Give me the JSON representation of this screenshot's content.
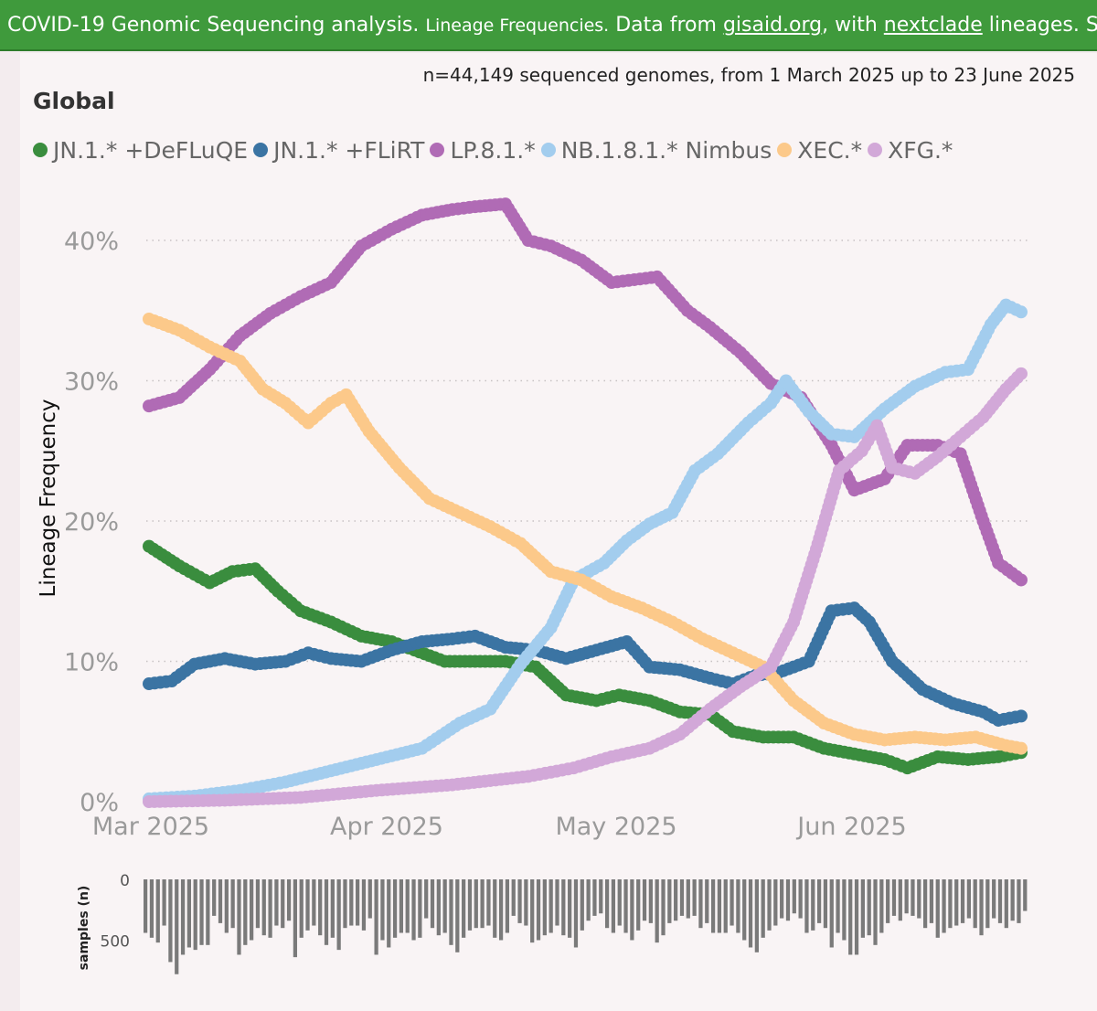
{
  "banner": {
    "part1": "COVID-19 Genomic Sequencing analysis. ",
    "part2": "Lineage Frequencies.",
    "part3": " Data from ",
    "link1": "gisaid.org",
    "part4": ", with ",
    "link2": "nextclade",
    "part5": " lineages. Source"
  },
  "subtitle": "n=44,149 sequenced genomes, from 1 March 2025 up to 23 June 2025",
  "region": "Global",
  "colors": {
    "JN.1.* +DeFLuQE": "#3a8d3e",
    "JN.1.* +FLiRT": "#3b74a3",
    "LP.8.1.*": "#b06bb5",
    "NB.1.8.1.* Nimbus": "#a3cdee",
    "XEC.*": "#fcc98a",
    "XFG.*": "#d2a8d8"
  },
  "chart_data": [
    {
      "type": "scatter",
      "title": "",
      "ylabel": "Lineage Frequency",
      "xlabel": "",
      "y_unit": "%",
      "ylim": [
        0,
        45
      ],
      "yticks": [
        "0%",
        "10%",
        "20%",
        "30%",
        "40%"
      ],
      "xticks": [
        "Mar 2025",
        "Apr 2025",
        "May 2025",
        "Jun 2025"
      ],
      "x_range": [
        "2025-02-28",
        "2025-06-23"
      ],
      "grid": "horizontal dotted",
      "legend": "top-left",
      "series": [
        {
          "name": "JN.1.* +DeFLuQE",
          "points": [
            [
              "2025-02-28",
              18.2
            ],
            [
              "2025-03-04",
              16.8
            ],
            [
              "2025-03-08",
              15.6
            ],
            [
              "2025-03-11",
              16.4
            ],
            [
              "2025-03-14",
              16.6
            ],
            [
              "2025-03-17",
              15.0
            ],
            [
              "2025-03-20",
              13.6
            ],
            [
              "2025-03-24",
              12.8
            ],
            [
              "2025-03-28",
              11.8
            ],
            [
              "2025-04-01",
              11.4
            ],
            [
              "2025-04-04",
              10.8
            ],
            [
              "2025-04-08",
              10.0
            ],
            [
              "2025-04-12",
              10.0
            ],
            [
              "2025-04-16",
              10.0
            ],
            [
              "2025-04-20",
              9.6
            ],
            [
              "2025-04-24",
              7.6
            ],
            [
              "2025-04-28",
              7.2
            ],
            [
              "2025-05-01",
              7.6
            ],
            [
              "2025-05-05",
              7.2
            ],
            [
              "2025-05-09",
              6.4
            ],
            [
              "2025-05-13",
              6.2
            ],
            [
              "2025-05-16",
              5.0
            ],
            [
              "2025-05-20",
              4.6
            ],
            [
              "2025-05-24",
              4.6
            ],
            [
              "2025-05-28",
              3.8
            ],
            [
              "2025-06-01",
              3.4
            ],
            [
              "2025-06-05",
              3.0
            ],
            [
              "2025-06-08",
              2.4
            ],
            [
              "2025-06-12",
              3.2
            ],
            [
              "2025-06-16",
              3.0
            ],
            [
              "2025-06-20",
              3.2
            ],
            [
              "2025-06-23",
              3.5
            ]
          ]
        },
        {
          "name": "JN.1.* +FLiRT",
          "points": [
            [
              "2025-02-28",
              8.4
            ],
            [
              "2025-03-03",
              8.6
            ],
            [
              "2025-03-06",
              9.8
            ],
            [
              "2025-03-10",
              10.2
            ],
            [
              "2025-03-14",
              9.8
            ],
            [
              "2025-03-18",
              10.0
            ],
            [
              "2025-03-21",
              10.6
            ],
            [
              "2025-03-24",
              10.2
            ],
            [
              "2025-03-28",
              10.0
            ],
            [
              "2025-04-01",
              10.8
            ],
            [
              "2025-04-05",
              11.4
            ],
            [
              "2025-04-09",
              11.6
            ],
            [
              "2025-04-12",
              11.8
            ],
            [
              "2025-04-16",
              11.0
            ],
            [
              "2025-04-20",
              10.8
            ],
            [
              "2025-04-24",
              10.2
            ],
            [
              "2025-04-28",
              10.8
            ],
            [
              "2025-05-02",
              11.4
            ],
            [
              "2025-05-05",
              9.6
            ],
            [
              "2025-05-09",
              9.4
            ],
            [
              "2025-05-13",
              8.8
            ],
            [
              "2025-05-16",
              8.4
            ],
            [
              "2025-05-19",
              9.0
            ],
            [
              "2025-05-22",
              9.2
            ],
            [
              "2025-05-26",
              10.0
            ],
            [
              "2025-05-29",
              13.6
            ],
            [
              "2025-06-01",
              13.8
            ],
            [
              "2025-06-03",
              12.8
            ],
            [
              "2025-06-06",
              10.0
            ],
            [
              "2025-06-10",
              8.0
            ],
            [
              "2025-06-14",
              7.0
            ],
            [
              "2025-06-18",
              6.4
            ],
            [
              "2025-06-20",
              5.8
            ],
            [
              "2025-06-23",
              6.1
            ]
          ]
        },
        {
          "name": "LP.8.1.*",
          "points": [
            [
              "2025-02-28",
              28.2
            ],
            [
              "2025-03-04",
              28.8
            ],
            [
              "2025-03-08",
              30.8
            ],
            [
              "2025-03-12",
              33.2
            ],
            [
              "2025-03-16",
              34.8
            ],
            [
              "2025-03-20",
              36.0
            ],
            [
              "2025-03-24",
              37.0
            ],
            [
              "2025-03-28",
              39.6
            ],
            [
              "2025-04-01",
              40.8
            ],
            [
              "2025-04-05",
              41.8
            ],
            [
              "2025-04-09",
              42.2
            ],
            [
              "2025-04-12",
              42.4
            ],
            [
              "2025-04-16",
              42.6
            ],
            [
              "2025-04-19",
              40.0
            ],
            [
              "2025-04-22",
              39.6
            ],
            [
              "2025-04-26",
              38.6
            ],
            [
              "2025-04-30",
              37.0
            ],
            [
              "2025-05-03",
              37.2
            ],
            [
              "2025-05-06",
              37.4
            ],
            [
              "2025-05-10",
              35.0
            ],
            [
              "2025-05-13",
              33.8
            ],
            [
              "2025-05-17",
              32.0
            ],
            [
              "2025-05-21",
              29.8
            ],
            [
              "2025-05-25",
              28.8
            ],
            [
              "2025-05-29",
              25.4
            ],
            [
              "2025-06-01",
              22.2
            ],
            [
              "2025-06-05",
              23.0
            ],
            [
              "2025-06-08",
              25.4
            ],
            [
              "2025-06-12",
              25.4
            ],
            [
              "2025-06-15",
              24.8
            ],
            [
              "2025-06-18",
              20.0
            ],
            [
              "2025-06-20",
              17.0
            ],
            [
              "2025-06-23",
              15.8
            ]
          ]
        },
        {
          "name": "NB.1.8.1.* Nimbus",
          "points": [
            [
              "2025-02-28",
              0.2
            ],
            [
              "2025-03-06",
              0.4
            ],
            [
              "2025-03-12",
              0.8
            ],
            [
              "2025-03-18",
              1.4
            ],
            [
              "2025-03-24",
              2.2
            ],
            [
              "2025-03-30",
              3.0
            ],
            [
              "2025-04-05",
              3.8
            ],
            [
              "2025-04-10",
              5.6
            ],
            [
              "2025-04-14",
              6.6
            ],
            [
              "2025-04-18",
              9.8
            ],
            [
              "2025-04-22",
              12.4
            ],
            [
              "2025-04-25",
              15.8
            ],
            [
              "2025-04-29",
              17.0
            ],
            [
              "2025-05-02",
              18.6
            ],
            [
              "2025-05-05",
              19.8
            ],
            [
              "2025-05-08",
              20.6
            ],
            [
              "2025-05-11",
              23.6
            ],
            [
              "2025-05-14",
              24.8
            ],
            [
              "2025-05-18",
              27.0
            ],
            [
              "2025-05-21",
              28.4
            ],
            [
              "2025-05-23",
              30.0
            ],
            [
              "2025-05-26",
              27.8
            ],
            [
              "2025-05-29",
              26.2
            ],
            [
              "2025-06-01",
              26.0
            ],
            [
              "2025-06-05",
              28.0
            ],
            [
              "2025-06-09",
              29.6
            ],
            [
              "2025-06-13",
              30.6
            ],
            [
              "2025-06-16",
              30.8
            ],
            [
              "2025-06-19",
              34.0
            ],
            [
              "2025-06-21",
              35.4
            ],
            [
              "2025-06-23",
              34.9
            ]
          ]
        },
        {
          "name": "XEC.*",
          "points": [
            [
              "2025-02-28",
              34.4
            ],
            [
              "2025-03-04",
              33.6
            ],
            [
              "2025-03-08",
              32.4
            ],
            [
              "2025-03-12",
              31.4
            ],
            [
              "2025-03-15",
              29.4
            ],
            [
              "2025-03-18",
              28.4
            ],
            [
              "2025-03-21",
              27.0
            ],
            [
              "2025-03-24",
              28.4
            ],
            [
              "2025-03-26",
              29.0
            ],
            [
              "2025-03-29",
              26.4
            ],
            [
              "2025-04-02",
              23.8
            ],
            [
              "2025-04-06",
              21.6
            ],
            [
              "2025-04-10",
              20.6
            ],
            [
              "2025-04-14",
              19.6
            ],
            [
              "2025-04-18",
              18.4
            ],
            [
              "2025-04-22",
              16.4
            ],
            [
              "2025-04-26",
              15.8
            ],
            [
              "2025-04-30",
              14.6
            ],
            [
              "2025-05-04",
              13.8
            ],
            [
              "2025-05-08",
              12.8
            ],
            [
              "2025-05-12",
              11.6
            ],
            [
              "2025-05-16",
              10.6
            ],
            [
              "2025-05-20",
              9.6
            ],
            [
              "2025-05-24",
              7.2
            ],
            [
              "2025-05-28",
              5.6
            ],
            [
              "2025-06-01",
              4.8
            ],
            [
              "2025-06-05",
              4.4
            ],
            [
              "2025-06-09",
              4.6
            ],
            [
              "2025-06-13",
              4.4
            ],
            [
              "2025-06-17",
              4.6
            ],
            [
              "2025-06-21",
              4.0
            ],
            [
              "2025-06-23",
              3.8
            ]
          ]
        },
        {
          "name": "XFG.*",
          "points": [
            [
              "2025-02-28",
              0.0
            ],
            [
              "2025-03-10",
              0.1
            ],
            [
              "2025-03-20",
              0.3
            ],
            [
              "2025-03-30",
              0.8
            ],
            [
              "2025-04-09",
              1.2
            ],
            [
              "2025-04-19",
              1.8
            ],
            [
              "2025-04-25",
              2.4
            ],
            [
              "2025-04-30",
              3.2
            ],
            [
              "2025-05-05",
              3.8
            ],
            [
              "2025-05-09",
              4.8
            ],
            [
              "2025-05-13",
              6.6
            ],
            [
              "2025-05-17",
              8.2
            ],
            [
              "2025-05-21",
              9.6
            ],
            [
              "2025-05-24",
              12.8
            ],
            [
              "2025-05-27",
              18.0
            ],
            [
              "2025-05-30",
              23.6
            ],
            [
              "2025-06-02",
              25.0
            ],
            [
              "2025-06-04",
              26.8
            ],
            [
              "2025-06-06",
              23.8
            ],
            [
              "2025-06-09",
              23.4
            ],
            [
              "2025-06-12",
              24.6
            ],
            [
              "2025-06-15",
              26.0
            ],
            [
              "2025-06-18",
              27.4
            ],
            [
              "2025-06-21",
              29.4
            ],
            [
              "2025-06-23",
              30.5
            ]
          ]
        }
      ]
    },
    {
      "type": "bar",
      "title": "",
      "ylabel": "samples (n)",
      "yticks": [
        0,
        500
      ],
      "ylim": [
        0,
        800
      ],
      "orientation": "downward",
      "values": [
        440,
        480,
        520,
        380,
        680,
        780,
        620,
        560,
        580,
        540,
        540,
        300,
        360,
        440,
        400,
        620,
        540,
        500,
        400,
        460,
        480,
        380,
        400,
        340,
        640,
        480,
        420,
        380,
        460,
        540,
        480,
        580,
        400,
        380,
        380,
        420,
        320,
        620,
        500,
        560,
        480,
        440,
        440,
        500,
        480,
        320,
        400,
        460,
        440,
        540,
        600,
        480,
        420,
        400,
        400,
        380,
        480,
        500,
        440,
        300,
        360,
        380,
        520,
        500,
        460,
        440,
        380,
        460,
        480,
        560,
        420,
        340,
        300,
        280,
        400,
        440,
        380,
        440,
        500,
        420,
        340,
        360,
        520,
        460,
        360,
        340,
        300,
        320,
        300,
        400,
        360,
        440,
        440,
        440,
        380,
        440,
        500,
        560,
        600,
        480,
        420,
        380,
        320,
        340,
        280,
        320,
        440,
        420,
        360,
        400,
        560,
        440,
        500,
        620,
        620,
        480,
        460,
        540,
        440,
        360,
        300,
        340,
        280,
        300,
        320,
        400,
        360,
        480,
        440,
        400,
        380,
        360,
        320,
        400,
        460,
        400,
        320,
        360,
        400,
        340,
        360,
        260
      ]
    }
  ]
}
